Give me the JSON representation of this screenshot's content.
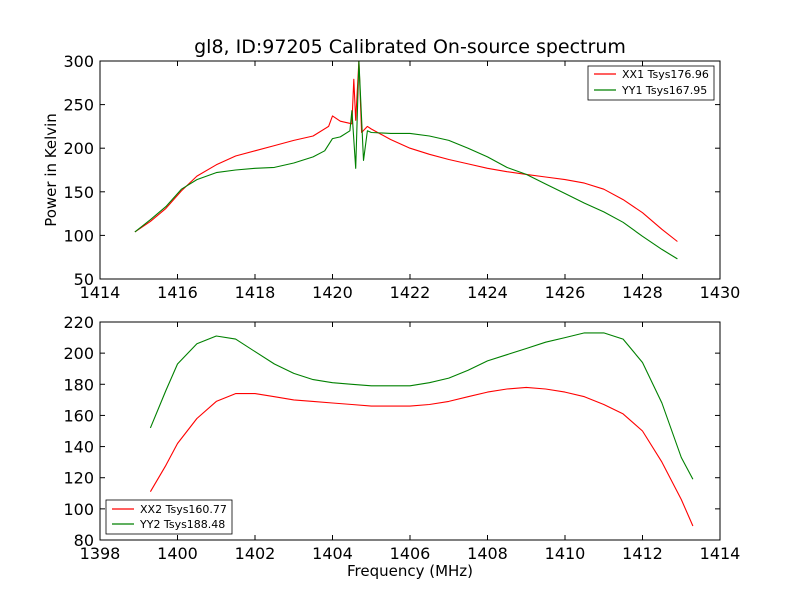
{
  "chart_data": [
    {
      "type": "line",
      "title": "gl8, ID:97205 Calibrated On-source spectrum",
      "xlabel": "",
      "ylabel": "Power in Kelvin",
      "xlim": [
        1414,
        1430
      ],
      "ylim": [
        50,
        300
      ],
      "xticks": [
        1414,
        1416,
        1418,
        1420,
        1422,
        1424,
        1426,
        1428,
        1430
      ],
      "yticks": [
        50,
        100,
        150,
        200,
        250,
        300
      ],
      "legend_position": "top-right",
      "grid": false,
      "series": [
        {
          "name": "XX1 Tsys176.96",
          "color": "#ff0000",
          "points": [
            [
              1414.9,
              104
            ],
            [
              1415.3,
              116
            ],
            [
              1415.7,
              131
            ],
            [
              1416.1,
              151
            ],
            [
              1416.5,
              168
            ],
            [
              1417.0,
              181
            ],
            [
              1417.5,
              191
            ],
            [
              1418.0,
              197
            ],
            [
              1418.5,
              203
            ],
            [
              1419.0,
              209
            ],
            [
              1419.5,
              214
            ],
            [
              1419.9,
              225
            ],
            [
              1420.0,
              237
            ],
            [
              1420.2,
              231
            ],
            [
              1420.5,
              228
            ],
            [
              1420.55,
              279
            ],
            [
              1420.6,
              232
            ],
            [
              1420.68,
              300
            ],
            [
              1420.75,
              218
            ],
            [
              1420.9,
              225
            ],
            [
              1421.0,
              222
            ],
            [
              1421.5,
              210
            ],
            [
              1422.0,
              200
            ],
            [
              1422.5,
              193
            ],
            [
              1423.0,
              187
            ],
            [
              1423.5,
              182
            ],
            [
              1424.0,
              177
            ],
            [
              1424.5,
              173
            ],
            [
              1425.0,
              170
            ],
            [
              1425.5,
              167
            ],
            [
              1426.0,
              164
            ],
            [
              1426.5,
              160
            ],
            [
              1427.0,
              153
            ],
            [
              1427.5,
              141
            ],
            [
              1428.0,
              126
            ],
            [
              1428.5,
              107
            ],
            [
              1428.9,
              93
            ]
          ]
        },
        {
          "name": "YY1 Tsys167.95",
          "color": "#008000",
          "points": [
            [
              1414.9,
              104
            ],
            [
              1415.3,
              118
            ],
            [
              1415.7,
              133
            ],
            [
              1416.1,
              153
            ],
            [
              1416.5,
              164
            ],
            [
              1417.0,
              172
            ],
            [
              1417.5,
              175
            ],
            [
              1418.0,
              177
            ],
            [
              1418.5,
              178
            ],
            [
              1419.0,
              183
            ],
            [
              1419.5,
              190
            ],
            [
              1419.8,
              197
            ],
            [
              1420.0,
              211
            ],
            [
              1420.2,
              213
            ],
            [
              1420.45,
              220
            ],
            [
              1420.5,
              243
            ],
            [
              1420.6,
              177
            ],
            [
              1420.68,
              300
            ],
            [
              1420.8,
              186
            ],
            [
              1420.9,
              220
            ],
            [
              1421.0,
              218
            ],
            [
              1421.5,
              217
            ],
            [
              1422.0,
              217
            ],
            [
              1422.5,
              214
            ],
            [
              1423.0,
              209
            ],
            [
              1423.5,
              200
            ],
            [
              1424.0,
              190
            ],
            [
              1424.5,
              178
            ],
            [
              1425.0,
              170
            ],
            [
              1425.5,
              159
            ],
            [
              1426.0,
              148
            ],
            [
              1426.5,
              137
            ],
            [
              1427.0,
              127
            ],
            [
              1427.5,
              115
            ],
            [
              1428.0,
              99
            ],
            [
              1428.5,
              84
            ],
            [
              1428.9,
              73
            ]
          ]
        }
      ]
    },
    {
      "type": "line",
      "title": "",
      "xlabel": "Frequency (MHz)",
      "ylabel": "",
      "xlim": [
        1398,
        1414
      ],
      "ylim": [
        80,
        220
      ],
      "xticks": [
        1398,
        1400,
        1402,
        1404,
        1406,
        1408,
        1410,
        1412,
        1414
      ],
      "yticks": [
        80,
        100,
        120,
        140,
        160,
        180,
        200,
        220
      ],
      "legend_position": "bottom-left",
      "grid": false,
      "series": [
        {
          "name": "XX2 Tsys160.77",
          "color": "#ff0000",
          "points": [
            [
              1399.3,
              111
            ],
            [
              1399.7,
              128
            ],
            [
              1400.0,
              142
            ],
            [
              1400.5,
              158
            ],
            [
              1401.0,
              169
            ],
            [
              1401.5,
              174
            ],
            [
              1402.0,
              174
            ],
            [
              1402.5,
              172
            ],
            [
              1403.0,
              170
            ],
            [
              1403.5,
              169
            ],
            [
              1404.0,
              168
            ],
            [
              1404.5,
              167
            ],
            [
              1405.0,
              166
            ],
            [
              1405.5,
              166
            ],
            [
              1406.0,
              166
            ],
            [
              1406.5,
              167
            ],
            [
              1407.0,
              169
            ],
            [
              1407.5,
              172
            ],
            [
              1408.0,
              175
            ],
            [
              1408.5,
              177
            ],
            [
              1409.0,
              178
            ],
            [
              1409.5,
              177
            ],
            [
              1410.0,
              175
            ],
            [
              1410.5,
              172
            ],
            [
              1411.0,
              167
            ],
            [
              1411.5,
              161
            ],
            [
              1412.0,
              150
            ],
            [
              1412.5,
              130
            ],
            [
              1413.0,
              106
            ],
            [
              1413.3,
              89
            ]
          ]
        },
        {
          "name": "YY2 Tsys188.48",
          "color": "#008000",
          "points": [
            [
              1399.3,
              152
            ],
            [
              1399.7,
              176
            ],
            [
              1400.0,
              193
            ],
            [
              1400.5,
              206
            ],
            [
              1401.0,
              211
            ],
            [
              1401.5,
              209
            ],
            [
              1402.0,
              201
            ],
            [
              1402.5,
              193
            ],
            [
              1403.0,
              187
            ],
            [
              1403.5,
              183
            ],
            [
              1404.0,
              181
            ],
            [
              1404.5,
              180
            ],
            [
              1405.0,
              179
            ],
            [
              1405.5,
              179
            ],
            [
              1406.0,
              179
            ],
            [
              1406.5,
              181
            ],
            [
              1407.0,
              184
            ],
            [
              1407.5,
              189
            ],
            [
              1408.0,
              195
            ],
            [
              1408.5,
              199
            ],
            [
              1409.0,
              203
            ],
            [
              1409.5,
              207
            ],
            [
              1410.0,
              210
            ],
            [
              1410.5,
              213
            ],
            [
              1411.0,
              213
            ],
            [
              1411.5,
              209
            ],
            [
              1412.0,
              194
            ],
            [
              1412.5,
              168
            ],
            [
              1413.0,
              133
            ],
            [
              1413.3,
              119
            ]
          ]
        }
      ]
    }
  ]
}
